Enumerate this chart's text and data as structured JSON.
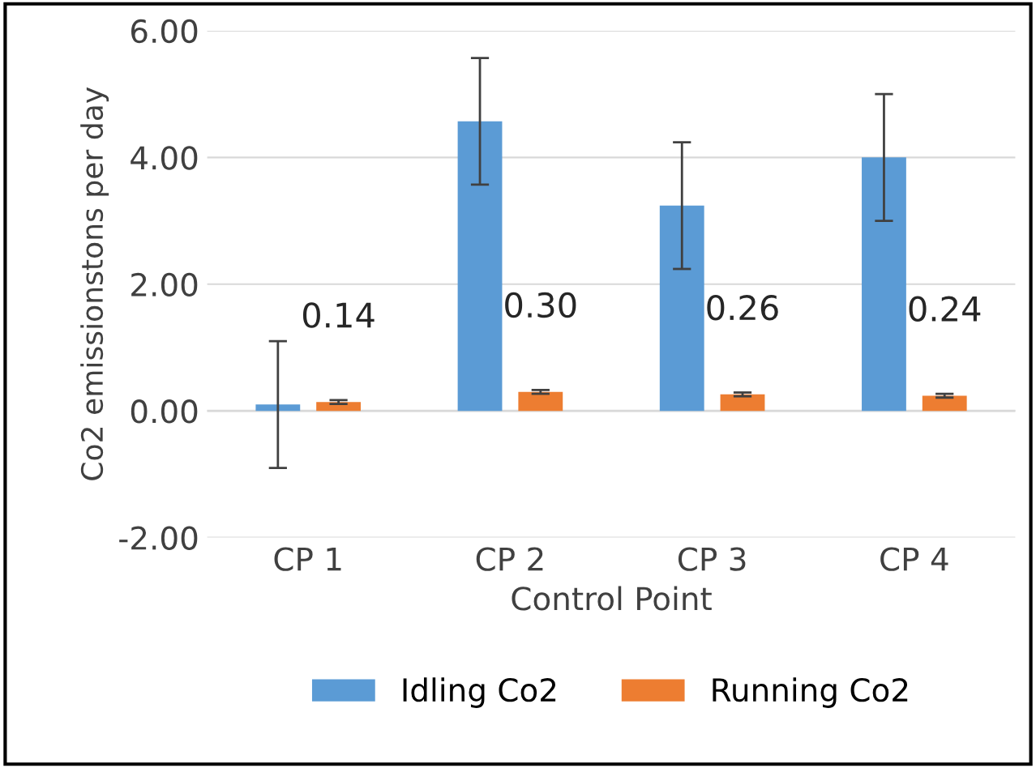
{
  "chart_data": {
    "type": "bar",
    "categories": [
      "CP 1",
      "CP 2",
      "CP 3",
      "CP 4"
    ],
    "xlabel": "Control Point",
    "ylabel": "Co2 emissionstons per day",
    "series": [
      {
        "name": "Idling Co2",
        "color": "#5b9bd5",
        "values": [
          0.1,
          4.57,
          3.24,
          4.0
        ],
        "errors": [
          1.0,
          1.0,
          1.0,
          1.0
        ]
      },
      {
        "name": "Running Co2",
        "color": "#ed7d31",
        "values": [
          0.14,
          0.3,
          0.26,
          0.24
        ],
        "errors": [
          0.03,
          0.03,
          0.03,
          0.03
        ],
        "value_labels": [
          "0.14",
          "0.30",
          "0.26",
          "0.24"
        ]
      }
    ],
    "ylim": [
      -2,
      6
    ],
    "yticks": [
      {
        "value": -2,
        "label": "-2.00"
      },
      {
        "value": 0,
        "label": "0.00"
      },
      {
        "value": 2,
        "label": "2.00"
      },
      {
        "value": 4,
        "label": "4.00"
      },
      {
        "value": 6,
        "label": "6.00"
      }
    ],
    "grid": "y",
    "legend": "bottom"
  }
}
